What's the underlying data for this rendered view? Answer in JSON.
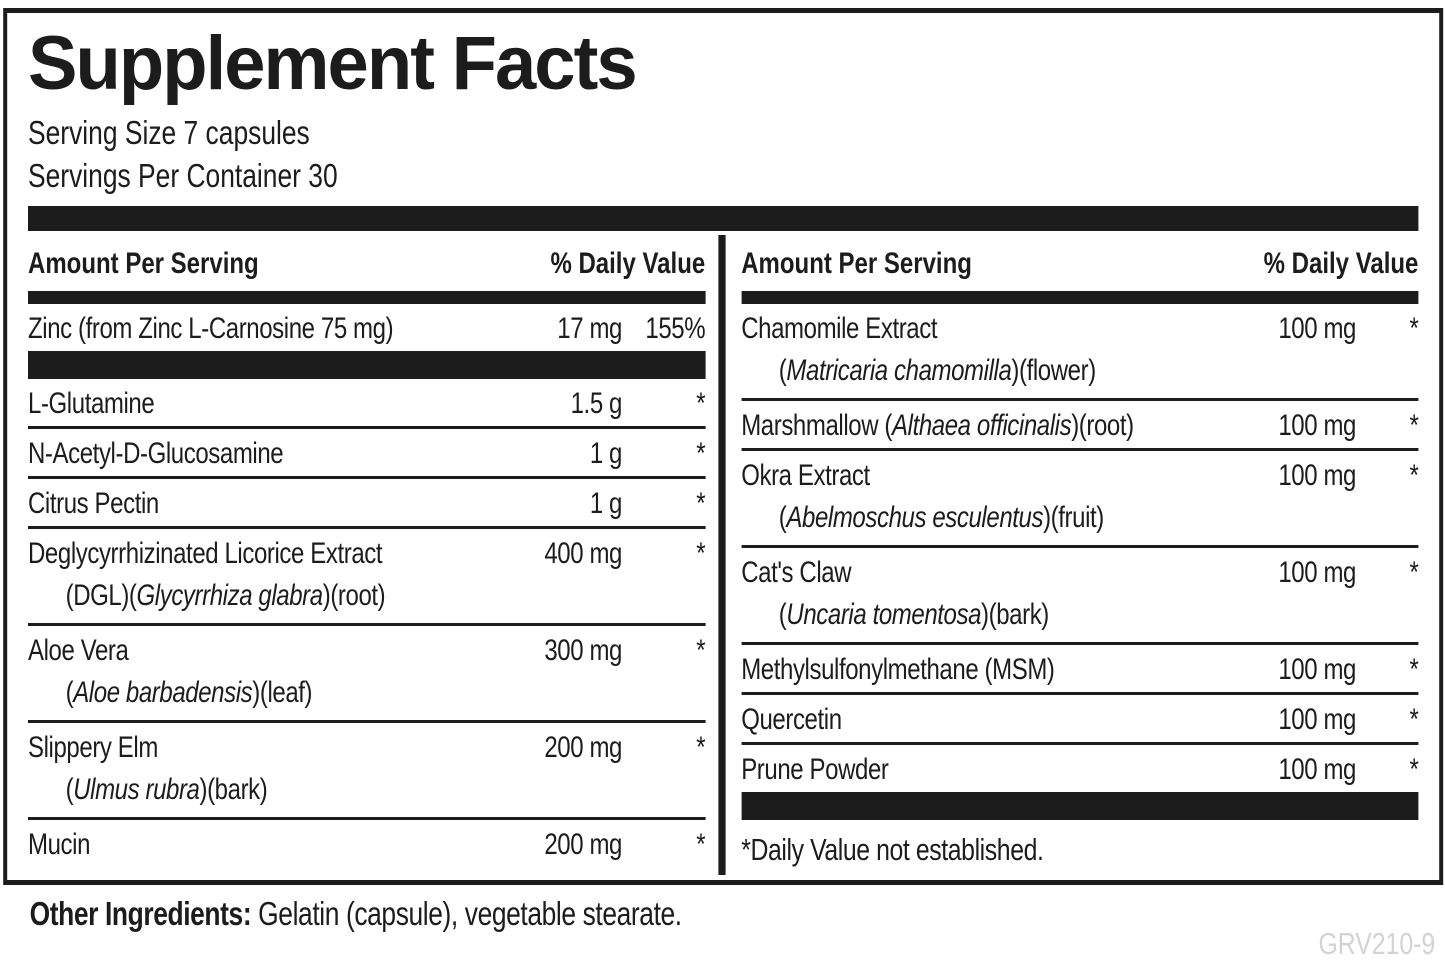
{
  "label": {
    "title": "Supplement Facts",
    "serving_size": "Serving Size 7 capsules",
    "servings_per_container": "Servings Per Container 30",
    "other_ingredients_label": "Other Ingredients:",
    "other_ingredients_text": " Gelatin (capsule), vegetable stearate.",
    "product_code": "GRV210-9",
    "colors": {
      "ink": "#1c1c1c",
      "background": "#ffffff",
      "product_code_gray": "#d3d3d3"
    }
  },
  "columns": [
    {
      "id": "left",
      "header": {
        "amount_label": "Amount Per Serving",
        "dv_label": "% Daily Value"
      },
      "rows": [
        {
          "line1": [
            {
              "t": "Zinc (from Zinc L-Carnosine 75 mg)"
            }
          ],
          "amount": "17 mg",
          "dv": "155%",
          "bar_after": true
        },
        {
          "line1": [
            {
              "t": "L-Glutamine"
            }
          ],
          "amount": "1.5 g",
          "dv": "*"
        },
        {
          "line1": [
            {
              "t": "N-Acetyl-D-Glucosamine"
            }
          ],
          "amount": "1 g",
          "dv": "*"
        },
        {
          "line1": [
            {
              "t": "Citrus Pectin"
            }
          ],
          "amount": "1 g",
          "dv": "*"
        },
        {
          "line1": [
            {
              "t": "Deglycyrrhizinated Licorice Extract"
            }
          ],
          "line2": [
            {
              "t": "(DGL)("
            },
            {
              "t": "Glycyrrhiza glabra",
              "i": true
            },
            {
              "t": ")(root)"
            }
          ],
          "amount": "400 mg",
          "dv": "*"
        },
        {
          "line1": [
            {
              "t": "Aloe Vera"
            }
          ],
          "line2": [
            {
              "t": "("
            },
            {
              "t": "Aloe barbadensis",
              "i": true
            },
            {
              "t": ")(leaf)"
            }
          ],
          "amount": "300 mg",
          "dv": "*"
        },
        {
          "line1": [
            {
              "t": "Slippery Elm"
            }
          ],
          "line2": [
            {
              "t": "("
            },
            {
              "t": "Ulmus rubra",
              "i": true
            },
            {
              "t": ")(bark)"
            }
          ],
          "amount": "200 mg",
          "dv": "*"
        },
        {
          "line1": [
            {
              "t": "Mucin"
            }
          ],
          "amount": "200 mg",
          "dv": "*",
          "last": true
        }
      ]
    },
    {
      "id": "right",
      "header": {
        "amount_label": "Amount Per Serving",
        "dv_label": "% Daily Value"
      },
      "rows": [
        {
          "line1": [
            {
              "t": "Chamomile Extract"
            }
          ],
          "line2": [
            {
              "t": "("
            },
            {
              "t": "Matricaria chamomilla",
              "i": true
            },
            {
              "t": ")(flower)"
            }
          ],
          "amount": "100 mg",
          "dv": "*"
        },
        {
          "line1": [
            {
              "t": "Marshmallow ("
            },
            {
              "t": "Althaea officinalis",
              "i": true
            },
            {
              "t": ")(root)"
            }
          ],
          "amount": "100 mg",
          "dv": "*"
        },
        {
          "line1": [
            {
              "t": "Okra Extract"
            }
          ],
          "line2": [
            {
              "t": "("
            },
            {
              "t": "Abelmoschus esculentus",
              "i": true
            },
            {
              "t": ")(fruit)"
            }
          ],
          "amount": "100 mg",
          "dv": "*"
        },
        {
          "line1": [
            {
              "t": "Cat's Claw"
            }
          ],
          "line2": [
            {
              "t": "("
            },
            {
              "t": "Uncaria tomentosa",
              "i": true
            },
            {
              "t": ")(bark)"
            }
          ],
          "amount": "100 mg",
          "dv": "*"
        },
        {
          "line1": [
            {
              "t": "Methylsulfonylmethane (MSM)"
            }
          ],
          "amount": "100 mg",
          "dv": "*"
        },
        {
          "line1": [
            {
              "t": "Quercetin"
            }
          ],
          "amount": "100 mg",
          "dv": "*"
        },
        {
          "line1": [
            {
              "t": "Prune Powder"
            }
          ],
          "amount": "100 mg",
          "dv": "*",
          "bar_after": true,
          "last": true
        }
      ],
      "footnote": "*Daily Value not established."
    }
  ]
}
